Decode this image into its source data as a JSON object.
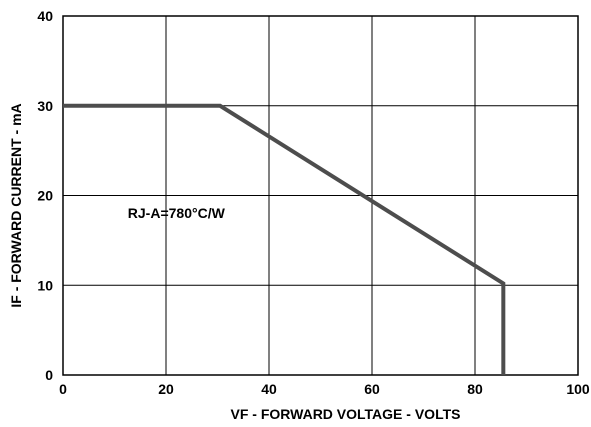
{
  "chart_data": {
    "type": "line",
    "title": "",
    "xlabel": "VF - FORWARD VOLTAGE - VOLTS",
    "ylabel": "IF - FORWARD CURRENT - mA",
    "xlim": [
      0,
      100
    ],
    "ylim": [
      0,
      40
    ],
    "grid": true,
    "x_ticks": [
      0,
      20,
      40,
      60,
      80,
      100
    ],
    "y_ticks": [
      0,
      10,
      20,
      30,
      40
    ],
    "x_tick_labels": [
      "0",
      "20",
      "40",
      "60",
      "80",
      "100"
    ],
    "y_tick_labels": [
      "0",
      "10",
      "20",
      "30",
      "40"
    ],
    "series": [
      {
        "x": [
          0,
          30.5,
          85.5,
          85.5
        ],
        "y": [
          30,
          30,
          10.2,
          0
        ],
        "color": "#4d4d4d"
      }
    ],
    "annotations": [
      {
        "text": "RJ-A=780°C/W",
        "x": 22,
        "y": 17.5
      }
    ]
  }
}
